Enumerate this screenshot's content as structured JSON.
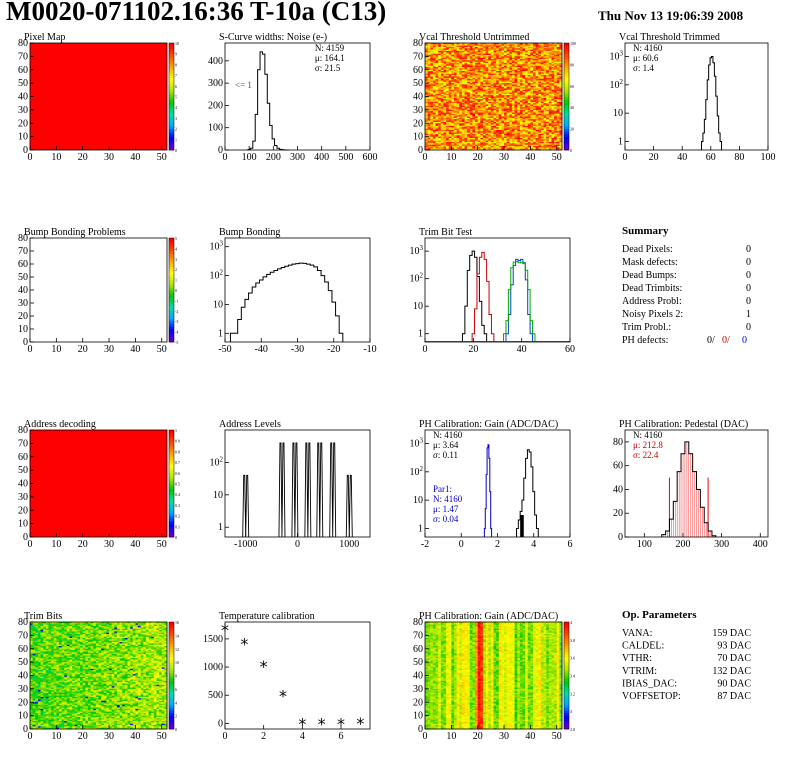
{
  "title": "M0020-071102.16:36 T-10a (C13)",
  "date": "Thu Nov 13 19:06:39 2008",
  "panels": [
    {
      "id": "pixel-map",
      "title": "Pixel Map",
      "type": "heatmap",
      "pattern": "solid",
      "xlim": [
        0,
        52
      ],
      "ylim": [
        0,
        80
      ],
      "xticks": [
        0,
        10,
        20,
        30,
        40,
        50
      ],
      "yticks": [
        0,
        10,
        20,
        30,
        40,
        50,
        60,
        70,
        80
      ],
      "palette": true,
      "paletteTicks": [
        "0",
        "1",
        "2",
        "3",
        "4",
        "5",
        "6",
        "7",
        "8",
        "9",
        "10"
      ]
    },
    {
      "id": "scurve",
      "title": "S-Curve widths: Noise (e-)",
      "type": "hist",
      "color": "#000",
      "xlim": [
        0,
        600
      ],
      "ylim": [
        0,
        480
      ],
      "logy": false,
      "xticks": [
        0,
        100,
        200,
        300,
        400,
        500,
        600
      ],
      "yticks": [
        0,
        100,
        200,
        300,
        400
      ],
      "stats": [
        {
          "t": "N: 4159"
        },
        {
          "t": "μ: 164.1"
        },
        {
          "t": "σ: 21.5"
        }
      ],
      "note": "<= 1",
      "series": [
        {
          "color": "#000",
          "x": [
            100,
            110,
            120,
            130,
            140,
            150,
            160,
            170,
            180,
            190,
            200,
            210,
            220,
            230,
            240,
            250,
            260
          ],
          "y": [
            2,
            8,
            40,
            160,
            360,
            440,
            430,
            340,
            210,
            110,
            50,
            20,
            8,
            3,
            1,
            0,
            0
          ]
        }
      ]
    },
    {
      "id": "vcal-untrimmed",
      "title": "Vcal Threshold Untrimmed",
      "type": "heatmap",
      "pattern": "noise-warm",
      "xlim": [
        0,
        52
      ],
      "ylim": [
        0,
        80
      ],
      "xticks": [
        0,
        10,
        20,
        30,
        40,
        50
      ],
      "yticks": [
        0,
        10,
        20,
        30,
        40,
        50,
        60,
        70,
        80
      ],
      "palette": true,
      "paletteTicks": [
        "0",
        "20",
        "40",
        "60",
        "80",
        "100"
      ]
    },
    {
      "id": "vcal-trimmed",
      "title": "Vcal Threshold Trimmed",
      "type": "hist",
      "color": "#000",
      "xlim": [
        0,
        100
      ],
      "ylim": [
        0.5,
        3000
      ],
      "logy": true,
      "xticks": [
        0,
        20,
        40,
        60,
        80,
        100
      ],
      "yticks": [
        1,
        10,
        100,
        1000
      ],
      "stats": [
        {
          "t": "N: 4160"
        },
        {
          "t": "μ: 60.6"
        },
        {
          "t": "σ: 1.4"
        }
      ],
      "series": [
        {
          "color": "#000",
          "x": [
            54,
            55,
            56,
            57,
            58,
            59,
            60,
            61,
            62,
            63,
            64,
            65,
            66,
            67
          ],
          "y": [
            1,
            2,
            6,
            30,
            150,
            500,
            900,
            1000,
            600,
            200,
            40,
            8,
            2,
            1
          ]
        }
      ]
    },
    {
      "id": "bump-problems",
      "title": "Bump Bonding Problems",
      "type": "heatmap",
      "pattern": "empty",
      "xlim": [
        0,
        52
      ],
      "ylim": [
        0,
        80
      ],
      "xticks": [
        0,
        10,
        20,
        30,
        40,
        50
      ],
      "yticks": [
        0,
        10,
        20,
        30,
        40,
        50,
        60,
        70,
        80
      ],
      "palette": true,
      "paletteTicks": [
        "-5",
        "-4",
        "-3",
        "-2",
        "-1",
        "0",
        "1",
        "2",
        "3",
        "4",
        "5"
      ]
    },
    {
      "id": "bump-bonding",
      "title": "Bump Bonding",
      "type": "hist",
      "color": "#000",
      "xlim": [
        -50,
        -10
      ],
      "ylim": [
        0.5,
        2000
      ],
      "logy": true,
      "xticks": [
        -50,
        -40,
        -30,
        -20,
        -10
      ],
      "yticks": [
        1,
        10,
        100,
        1000
      ],
      "series": [
        {
          "color": "#000",
          "x": [
            -48,
            -47,
            -46,
            -45,
            -44,
            -43,
            -42,
            -41,
            -40,
            -39,
            -38,
            -37,
            -36,
            -35,
            -34,
            -33,
            -32,
            -31,
            -30,
            -29,
            -28,
            -27,
            -26,
            -25,
            -24,
            -23,
            -22,
            -21,
            -20,
            -19,
            -18
          ],
          "y": [
            1,
            1,
            3,
            8,
            15,
            25,
            40,
            55,
            70,
            90,
            110,
            130,
            150,
            170,
            190,
            210,
            230,
            250,
            260,
            270,
            265,
            250,
            230,
            200,
            150,
            100,
            60,
            30,
            12,
            4,
            1
          ]
        }
      ]
    },
    {
      "id": "trim-bit-test",
      "title": "Trim Bit Test",
      "type": "hist",
      "color": "#000",
      "xlim": [
        0,
        60
      ],
      "ylim": [
        0.5,
        3000
      ],
      "logy": true,
      "xticks": [
        0,
        20,
        40,
        60
      ],
      "yticks": [
        1,
        10,
        100,
        1000
      ],
      "series": [
        {
          "color": "#000",
          "x": [
            16,
            17,
            18,
            19,
            20,
            21,
            22,
            23,
            24,
            25
          ],
          "y": [
            1,
            10,
            200,
            700,
            1000,
            600,
            120,
            15,
            2,
            1
          ]
        },
        {
          "color": "#c00",
          "x": [
            20,
            21,
            22,
            23,
            24,
            25,
            26,
            27,
            28
          ],
          "y": [
            1,
            8,
            150,
            600,
            900,
            500,
            80,
            5,
            1
          ]
        },
        {
          "color": "#0044cc",
          "x": [
            34,
            35,
            36,
            37,
            38,
            39,
            40,
            41,
            42,
            43,
            44
          ],
          "y": [
            1,
            5,
            60,
            300,
            500,
            450,
            500,
            380,
            90,
            5,
            1
          ]
        },
        {
          "color": "#00aa00",
          "x": [
            33,
            34,
            35,
            36,
            37,
            38,
            39,
            40,
            41,
            42,
            43,
            44,
            45
          ],
          "y": [
            1,
            3,
            40,
            250,
            400,
            420,
            380,
            400,
            350,
            200,
            40,
            3,
            1
          ]
        }
      ]
    },
    {
      "id": "summary",
      "title": "Summary",
      "type": "summary",
      "rows": [
        {
          "label": "Dead Pixels:",
          "value": "0"
        },
        {
          "label": "Mask defects:",
          "value": "0"
        },
        {
          "label": "Dead Bumps:",
          "value": "0"
        },
        {
          "label": "Dead Trimbits:",
          "value": "0"
        },
        {
          "label": "Address Probl:",
          "value": "0"
        },
        {
          "label": "Noisy Pixels 2:",
          "value": "1"
        },
        {
          "label": "Trim Probl.:",
          "value": "0"
        },
        {
          "label": "PH defects:",
          "value": "0/",
          "value2": "0/",
          "value3": "0"
        }
      ]
    },
    {
      "id": "address-decoding",
      "title": "Address decoding",
      "type": "heatmap",
      "pattern": "solid",
      "xlim": [
        0,
        52
      ],
      "ylim": [
        0,
        80
      ],
      "xticks": [
        0,
        10,
        20,
        30,
        40,
        50
      ],
      "yticks": [
        0,
        10,
        20,
        30,
        40,
        50,
        60,
        70,
        80
      ],
      "palette": true,
      "paletteTicks": [
        "0",
        "0.1",
        "0.2",
        "0.3",
        "0.4",
        "0.5",
        "0.6",
        "0.7",
        "0.8",
        "0.9",
        "1"
      ]
    },
    {
      "id": "address-levels",
      "title": "Address Levels",
      "type": "hist",
      "color": "#000",
      "xlim": [
        -1400,
        1400
      ],
      "ylim": [
        0.5,
        1000
      ],
      "logy": true,
      "xticks": [
        -1000,
        0,
        1000
      ],
      "yticks": [
        1,
        10,
        100
      ],
      "series": [
        {
          "color": "#000",
          "spikes": [
            -1000,
            -300,
            -50,
            200,
            430,
            680,
            1000
          ],
          "height": [
            40,
            400,
            400,
            400,
            400,
            400,
            40
          ]
        }
      ]
    },
    {
      "id": "ph-gain",
      "title": "PH Calibration: Gain (ADC/DAC)",
      "type": "hist",
      "color": "#000",
      "xlim": [
        -2,
        6
      ],
      "ylim": [
        0.5,
        3000
      ],
      "logy": true,
      "xticks": [
        -2,
        0,
        2,
        4,
        6
      ],
      "yticks": [
        1,
        10,
        100,
        1000
      ],
      "stats": [
        {
          "t": "N: 4160"
        },
        {
          "t": "μ: 3.64"
        },
        {
          "t": "σ: 0.11"
        }
      ],
      "stats2": [
        {
          "t": "Par1:"
        },
        {
          "t": "N: 4160"
        },
        {
          "t": "μ: 1.47"
        },
        {
          "t": "σ: 0.04"
        }
      ],
      "series": [
        {
          "color": "#000",
          "x": [
            3.1,
            3.2,
            3.3,
            3.4,
            3.5,
            3.6,
            3.7,
            3.8,
            3.9,
            4.0,
            4.1,
            4.2
          ],
          "y": [
            1,
            2,
            4,
            10,
            60,
            300,
            600,
            500,
            150,
            20,
            3,
            1
          ]
        },
        {
          "color": "#0000cc",
          "x": [
            1.3,
            1.35,
            1.4,
            1.45,
            1.5,
            1.55,
            1.6,
            1.65
          ],
          "y": [
            1,
            5,
            80,
            700,
            900,
            300,
            20,
            1
          ]
        }
      ]
    },
    {
      "id": "ph-pedestal",
      "title": "PH Calibration: Pedestal (DAC)",
      "type": "hist",
      "color": "#000",
      "xlim": [
        50,
        420
      ],
      "ylim": [
        0,
        90
      ],
      "logy": false,
      "xticks": [
        100,
        200,
        300,
        400
      ],
      "yticks": [
        0,
        20,
        40,
        60,
        80
      ],
      "stats": [
        {
          "t": "N: 4160",
          "c": "#000"
        },
        {
          "t": "μ: 212.8",
          "c": "#c00"
        },
        {
          "t": "σ: 22.4",
          "c": "#c00"
        }
      ],
      "series": [
        {
          "color": "#000",
          "x": [
            150,
            160,
            170,
            180,
            190,
            200,
            210,
            220,
            230,
            240,
            250,
            260,
            270,
            280
          ],
          "y": [
            2,
            5,
            15,
            30,
            55,
            70,
            80,
            70,
            55,
            40,
            25,
            12,
            5,
            1
          ]
        }
      ]
    },
    {
      "id": "trim-bits",
      "title": "Trim Bits",
      "type": "heatmap",
      "pattern": "noise-cool",
      "xlim": [
        0,
        52
      ],
      "ylim": [
        0,
        80
      ],
      "xticks": [
        0,
        10,
        20,
        30,
        40,
        50
      ],
      "yticks": [
        0,
        10,
        20,
        30,
        40,
        50,
        60,
        70,
        80
      ],
      "palette": true,
      "paletteTicks": [
        "0",
        "2",
        "4",
        "6",
        "8",
        "10",
        "12",
        "14",
        "16"
      ]
    },
    {
      "id": "temperature",
      "title": "Temperature calibration",
      "type": "scatter",
      "color": "#000",
      "xlim": [
        0,
        7.5
      ],
      "ylim": [
        -100,
        1800
      ],
      "logy": false,
      "xticks": [
        0,
        2,
        4,
        6
      ],
      "yticks": [
        0,
        500,
        1000,
        1500
      ],
      "series": [
        {
          "color": "#000",
          "x": [
            0,
            1,
            2,
            3,
            4,
            5,
            6,
            7
          ],
          "y": [
            1650,
            1400,
            1000,
            480,
            -20,
            -20,
            -20,
            -10
          ]
        }
      ]
    },
    {
      "id": "ph-gain-map",
      "title": "PH Calibration: Gain (ADC/DAC)",
      "type": "heatmap",
      "pattern": "stripes",
      "xlim": [
        0,
        52
      ],
      "ylim": [
        0,
        80
      ],
      "xticks": [
        0,
        10,
        20,
        30,
        40,
        50
      ],
      "yticks": [
        0,
        10,
        20,
        30,
        40,
        50,
        60,
        70,
        80
      ],
      "palette": true,
      "paletteTicks": [
        "2.8",
        "3",
        "3.2",
        "3.4",
        "3.6",
        "3.8",
        "4"
      ]
    },
    {
      "id": "op-params",
      "title": "Op. Parameters",
      "type": "summary",
      "rows": [
        {
          "label": "VANA:",
          "value": "159 DAC"
        },
        {
          "label": "CALDEL:",
          "value": "93 DAC"
        },
        {
          "label": "VTHR:",
          "value": "70 DAC"
        },
        {
          "label": "VTRIM:",
          "value": "132 DAC"
        },
        {
          "label": "IBIAS_DAC:",
          "value": "90 DAC"
        },
        {
          "label": "VOFFSETOP:",
          "value": "87 DAC"
        }
      ]
    }
  ],
  "chart_data": {
    "type": "heatmap",
    "note": "multi-panel detector test summary; per-panel data in panels[]"
  }
}
